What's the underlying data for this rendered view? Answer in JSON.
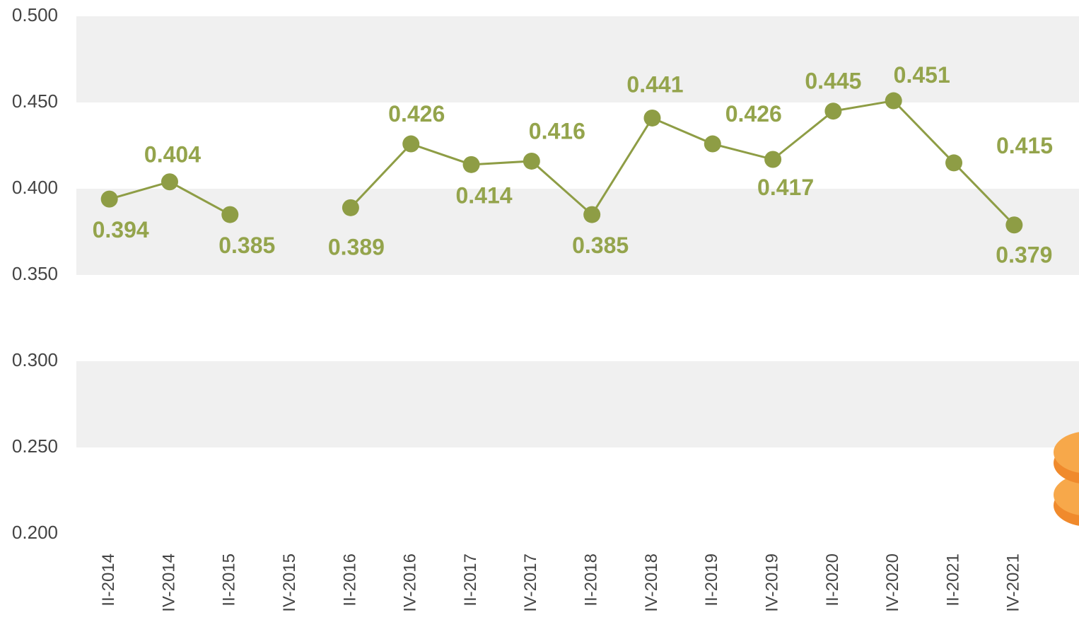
{
  "chart_data": {
    "type": "line",
    "categories": [
      "II-2014",
      "IV-2014",
      "II-2015",
      "IV-2015",
      "II-2016",
      "IV-2016",
      "II-2017",
      "IV-2017",
      "II-2018",
      "IV-2018",
      "II-2019",
      "IV-2019",
      "II-2020",
      "IV-2020",
      "II-2021",
      "IV-2021"
    ],
    "series": [
      {
        "name": "",
        "color": "#8e9d45",
        "values": [
          0.394,
          0.404,
          0.385,
          null,
          0.389,
          0.426,
          0.414,
          0.416,
          0.385,
          0.441,
          0.426,
          0.417,
          0.445,
          0.451,
          0.415,
          0.379
        ]
      }
    ],
    "ylim": [
      0.2,
      0.5
    ],
    "yticks": [
      {
        "value": 0.2,
        "label": "0.200"
      },
      {
        "value": 0.25,
        "label": "0.250"
      },
      {
        "value": 0.3,
        "label": "0.300"
      },
      {
        "value": 0.35,
        "label": "0.350"
      },
      {
        "value": 0.4,
        "label": "0.400"
      },
      {
        "value": 0.45,
        "label": "0.450"
      },
      {
        "value": 0.5,
        "label": "0.500"
      }
    ],
    "grid": "bands"
  }
}
